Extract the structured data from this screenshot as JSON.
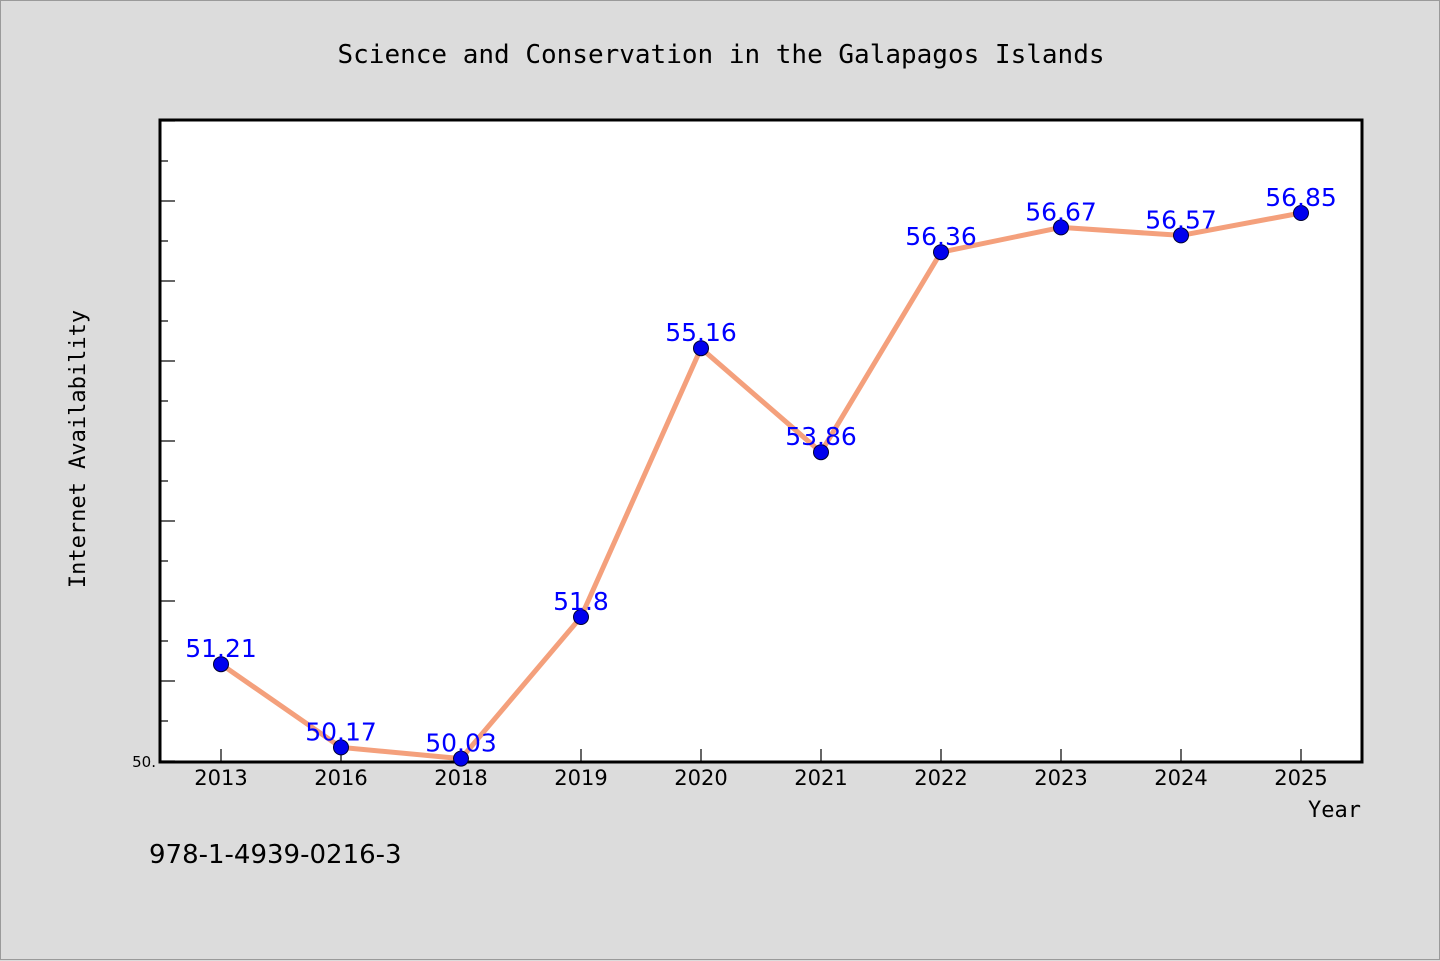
{
  "chart_data": {
    "type": "line",
    "title": "Science and Conservation in the Galapagos Islands",
    "xlabel": "Year",
    "ylabel": "Internet Availability",
    "categories": [
      "2013",
      "2016",
      "2018",
      "2019",
      "2020",
      "2021",
      "2022",
      "2023",
      "2024",
      "2025"
    ],
    "values": [
      51.21,
      50.17,
      50.03,
      51.8,
      55.16,
      53.86,
      56.36,
      56.67,
      56.57,
      56.85
    ],
    "data_labels": [
      "51.21",
      "50.17",
      "50.03",
      "51.8",
      "55.16",
      "53.86",
      "56.36",
      "56.67",
      "56.57",
      "56.85"
    ],
    "ylim": [
      50,
      58
    ],
    "y_min_label": "50.",
    "grid": false,
    "legend": "none",
    "line_color": "#f4a07c",
    "marker_color": "#0000ee",
    "label_color": "#0000ff"
  },
  "note": "978-1-4939-0216-3"
}
